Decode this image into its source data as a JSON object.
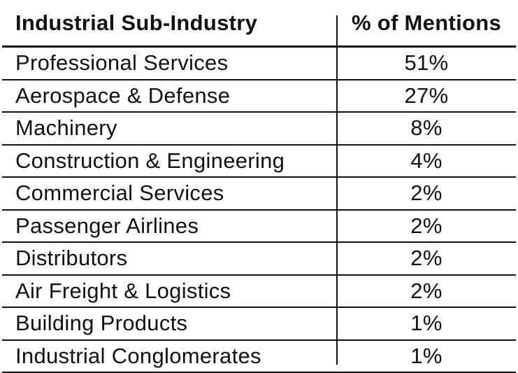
{
  "chart_data": {
    "type": "table",
    "columns": [
      "Industrial Sub-Industry",
      "% of Mentions"
    ],
    "rows": [
      [
        "Professional Services",
        "51%"
      ],
      [
        "Aerospace & Defense",
        "27%"
      ],
      [
        "Machinery",
        "8%"
      ],
      [
        "Construction & Engineering",
        "4%"
      ],
      [
        "Commercial Services",
        "2%"
      ],
      [
        "Passenger Airlines",
        "2%"
      ],
      [
        "Distributors",
        "2%"
      ],
      [
        "Air Freight & Logistics",
        "2%"
      ],
      [
        "Building Products",
        "1%"
      ],
      [
        "Industrial Conglomerates",
        "1%"
      ]
    ]
  },
  "colors": {
    "text": "#111111",
    "line": "#111111",
    "background": "#ffffff"
  }
}
